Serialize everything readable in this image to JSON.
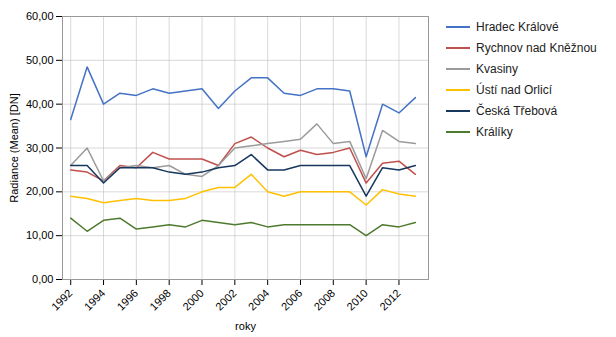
{
  "chart_data": {
    "type": "line",
    "xlabel": "roky",
    "ylabel": "Radiance (Mean) [DN]",
    "x": [
      1992,
      1993,
      1994,
      1995,
      1996,
      1997,
      1998,
      1999,
      2000,
      2001,
      2002,
      2003,
      2004,
      2005,
      2006,
      2007,
      2008,
      2009,
      2010,
      2011,
      2012,
      2013
    ],
    "series": [
      {
        "name": "Hradec Králové",
        "color": "#4472C4",
        "values": [
          36.5,
          48.5,
          40.0,
          42.5,
          42.0,
          43.5,
          42.5,
          43.0,
          43.5,
          39.0,
          43.0,
          46.0,
          46.0,
          42.5,
          42.0,
          43.5,
          43.5,
          43.0,
          28.0,
          40.0,
          38.0,
          41.5
        ]
      },
      {
        "name": "Rychnov nad Kněžnou",
        "color": "#C0504D",
        "values": [
          25.0,
          24.5,
          22.5,
          26.0,
          25.5,
          29.0,
          27.5,
          27.5,
          27.5,
          26.0,
          31.0,
          32.5,
          30.0,
          28.0,
          29.5,
          28.5,
          29.0,
          30.0,
          22.0,
          26.5,
          27.0,
          24.0
        ]
      },
      {
        "name": "Kvasiny",
        "color": "#9B9B9B",
        "values": [
          26.0,
          30.0,
          22.5,
          25.5,
          26.0,
          25.5,
          26.0,
          24.0,
          23.5,
          26.0,
          30.0,
          30.5,
          31.0,
          31.5,
          32.0,
          35.5,
          31.0,
          31.5,
          23.0,
          34.0,
          31.5,
          31.0
        ]
      },
      {
        "name": "Ústí nad Orlicí",
        "color": "#FFC000",
        "values": [
          19.0,
          18.5,
          17.5,
          18.0,
          18.5,
          18.0,
          18.0,
          18.5,
          20.0,
          21.0,
          21.0,
          24.0,
          20.0,
          19.0,
          20.0,
          20.0,
          20.0,
          20.0,
          17.0,
          20.5,
          19.5,
          19.0
        ]
      },
      {
        "name": "Česká Třebová",
        "color": "#17375E",
        "values": [
          26.0,
          26.0,
          22.0,
          25.5,
          25.5,
          25.5,
          24.5,
          24.0,
          24.5,
          25.5,
          26.0,
          28.5,
          25.0,
          25.0,
          26.0,
          26.0,
          26.0,
          26.0,
          19.0,
          25.5,
          25.0,
          26.0
        ]
      },
      {
        "name": "Králíky",
        "color": "#4E7A2F",
        "values": [
          14.0,
          11.0,
          13.5,
          14.0,
          11.5,
          12.0,
          12.5,
          12.0,
          13.5,
          13.0,
          12.5,
          13.0,
          12.0,
          12.5,
          12.5,
          12.5,
          12.5,
          12.5,
          10.0,
          12.5,
          12.0,
          13.0
        ]
      }
    ],
    "xlim": [
      1991.5,
      2013.8
    ],
    "xticks": [
      1992,
      1994,
      1996,
      1998,
      2000,
      2002,
      2004,
      2006,
      2008,
      2010,
      2012
    ],
    "ylim": [
      0,
      60
    ],
    "yticks": [
      {
        "value": 0,
        "label": "0,00"
      },
      {
        "value": 10,
        "label": "10,00"
      },
      {
        "value": 20,
        "label": "20,00"
      },
      {
        "value": 30,
        "label": "30,00"
      },
      {
        "value": 40,
        "label": "40,00"
      },
      {
        "value": 50,
        "label": "50,00"
      },
      {
        "value": 60,
        "label": "60,00"
      }
    ],
    "grid": true,
    "legend": "right"
  }
}
